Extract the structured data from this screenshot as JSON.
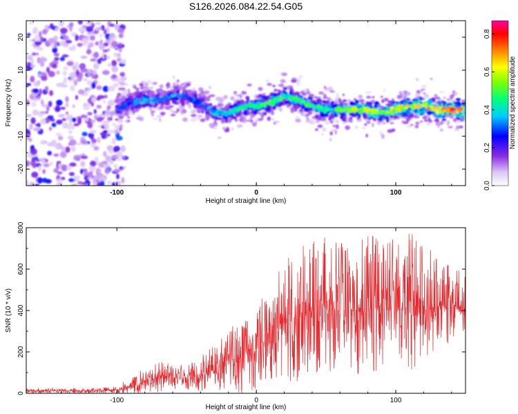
{
  "title": "S126.2026.084.22.54.G05",
  "chart_data": [
    {
      "type": "heatmap",
      "name": "spectrogram",
      "xlabel": "Height of straight line (km)",
      "ylabel": "Frequency (Hz)",
      "xlim": [
        -165,
        150
      ],
      "ylim": [
        -25,
        25
      ],
      "xticks": [
        -100,
        0,
        100
      ],
      "yticks": [
        -20,
        -10,
        0,
        10,
        20
      ],
      "colorbar": {
        "label": "Normalized spectral amplitude",
        "range": [
          0,
          0.87
        ],
        "ticks": [
          0.0,
          0.2,
          0.4,
          0.6,
          0.8
        ]
      },
      "signal_ridge": {
        "description": "frequency of the strongest return vs height",
        "x": [
          -100,
          -90,
          -80,
          -70,
          -60,
          -50,
          -40,
          -30,
          -20,
          -10,
          0,
          10,
          20,
          30,
          40,
          50,
          60,
          70,
          80,
          90,
          100,
          110,
          120,
          130,
          140,
          148
        ],
        "y": [
          -2,
          0,
          1,
          1,
          2,
          2,
          0,
          -3,
          -3,
          -1,
          -1,
          0,
          2,
          1,
          -1,
          -2,
          -2,
          -2,
          -2,
          -3,
          -2,
          -1,
          -1,
          -2,
          -2,
          -2
        ],
        "peak_amplitude": [
          0.3,
          0.35,
          0.4,
          0.35,
          0.4,
          0.35,
          0.35,
          0.4,
          0.45,
          0.5,
          0.5,
          0.55,
          0.5,
          0.5,
          0.55,
          0.5,
          0.55,
          0.6,
          0.65,
          0.6,
          0.65,
          0.7,
          0.75,
          0.8,
          0.85,
          0.85
        ]
      },
      "noise_region": {
        "x_range": [
          -165,
          -100
        ],
        "amplitude": "0.1-0.3"
      }
    },
    {
      "type": "line",
      "name": "snr",
      "xlabel": "Height of straight line (km)",
      "ylabel": "SNR (10 * v/v)",
      "xlim": [
        -165,
        150
      ],
      "ylim": [
        0,
        800
      ],
      "xticks": [
        -100,
        0,
        100
      ],
      "yticks": [
        0,
        200,
        400,
        600,
        800
      ],
      "color": "#e8282d",
      "envelope": {
        "x": [
          -165,
          -120,
          -100,
          -90,
          -80,
          -70,
          -60,
          -50,
          -40,
          -30,
          -20,
          -10,
          0,
          10,
          20,
          30,
          40,
          50,
          60,
          70,
          80,
          90,
          100,
          110,
          120,
          130,
          140,
          150
        ],
        "mean": [
          12,
          12,
          15,
          30,
          60,
          75,
          75,
          75,
          90,
          115,
          150,
          175,
          215,
          290,
          330,
          365,
          385,
          395,
          405,
          410,
          410,
          410,
          415,
          420,
          420,
          420,
          420,
          420
        ],
        "peak": [
          25,
          25,
          35,
          80,
          125,
          160,
          140,
          140,
          190,
          230,
          310,
          410,
          440,
          560,
          640,
          740,
          730,
          760,
          720,
          780,
          800,
          740,
          750,
          800,
          730,
          670,
          620,
          600
        ]
      }
    }
  ]
}
